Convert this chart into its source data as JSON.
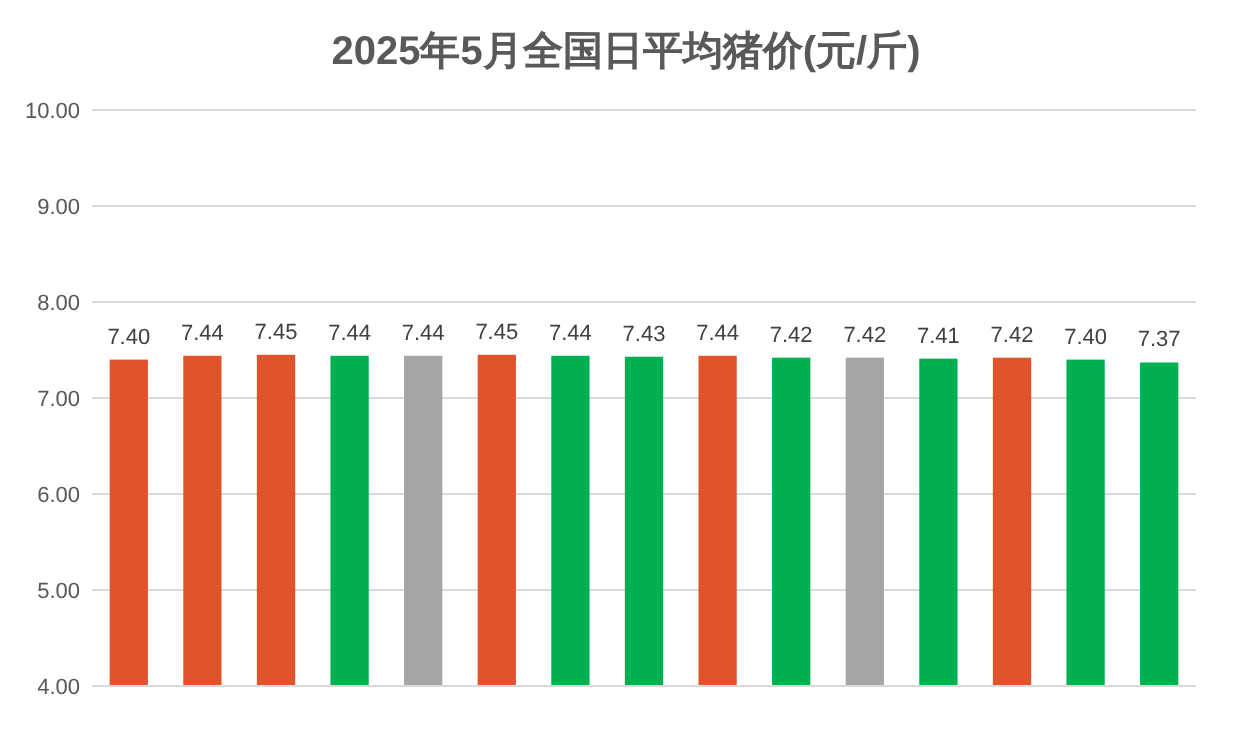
{
  "chart_data": {
    "type": "bar",
    "title": "2025年5月全国日平均猪价(元/斤)",
    "categories": [
      null,
      null,
      null,
      null,
      null,
      null,
      null,
      null,
      null,
      null,
      null,
      null,
      null,
      null,
      null
    ],
    "values": [
      7.4,
      7.44,
      7.45,
      7.44,
      7.44,
      7.45,
      7.44,
      7.43,
      7.44,
      7.42,
      7.42,
      7.41,
      7.42,
      7.4,
      7.37
    ],
    "value_labels": [
      "7.40",
      "7.44",
      "7.45",
      "7.44",
      "7.44",
      "7.45",
      "7.44",
      "7.43",
      "7.44",
      "7.42",
      "7.42",
      "7.41",
      "7.42",
      "7.40",
      "7.37"
    ],
    "colors": [
      "#e0542b",
      "#e0542b",
      "#e0542b",
      "#00b050",
      "#a5a5a5",
      "#e0542b",
      "#00b050",
      "#00b050",
      "#e0542b",
      "#00b050",
      "#a5a5a5",
      "#00b050",
      "#e0542b",
      "#00b050",
      "#00b050"
    ],
    "ylim": [
      4,
      10
    ],
    "yticks": [
      {
        "value": 4,
        "label": "4.00"
      },
      {
        "value": 5,
        "label": "5.00"
      },
      {
        "value": 6,
        "label": "6.00"
      },
      {
        "value": 7,
        "label": "7.00"
      },
      {
        "value": 8,
        "label": "8.00"
      },
      {
        "value": 9,
        "label": "9.00"
      },
      {
        "value": 10,
        "label": "10.00"
      }
    ],
    "grid": "y",
    "tick_labels": "y"
  }
}
